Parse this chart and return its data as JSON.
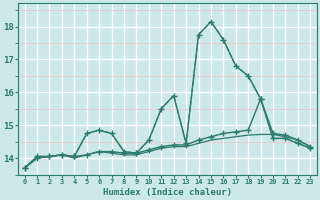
{
  "title": "",
  "xlabel": "Humidex (Indice chaleur)",
  "ylabel": "",
  "bg_color": "#cce8e8",
  "line_color": "#2d7a6e",
  "major_grid_color": "#ffffff",
  "minor_grid_color": "#e8c8c8",
  "xlim": [
    -0.5,
    23.5
  ],
  "ylim": [
    13.5,
    18.7
  ],
  "yticks": [
    14,
    15,
    16,
    17,
    18
  ],
  "xticks": [
    0,
    1,
    2,
    3,
    4,
    5,
    6,
    7,
    8,
    9,
    10,
    11,
    12,
    13,
    14,
    15,
    16,
    17,
    18,
    19,
    20,
    21,
    22,
    23
  ],
  "series": [
    {
      "x": [
        0,
        1,
        2,
        3,
        4,
        5,
        6,
        7,
        8,
        9,
        10,
        11,
        12,
        13,
        14,
        15,
        16,
        17,
        18,
        19,
        20,
        21,
        22,
        23
      ],
      "y": [
        13.7,
        14.05,
        14.05,
        14.1,
        14.05,
        14.75,
        14.85,
        14.75,
        14.2,
        14.15,
        14.55,
        15.5,
        15.9,
        14.45,
        17.75,
        18.15,
        17.6,
        16.8,
        16.5,
        15.8,
        14.6,
        14.6,
        14.45,
        14.3
      ],
      "style": "solid",
      "marker": "+",
      "markersize": 4,
      "linewidth": 1.0,
      "zorder": 3
    },
    {
      "x": [
        0,
        1,
        2,
        3,
        4,
        5,
        6,
        7,
        8,
        9,
        10,
        11,
        12,
        13,
        14,
        15,
        16,
        17,
        18,
        19,
        20,
        21,
        22,
        23
      ],
      "y": [
        13.7,
        14.05,
        14.05,
        14.1,
        14.05,
        14.75,
        14.85,
        14.75,
        14.2,
        14.15,
        14.55,
        15.5,
        15.9,
        14.45,
        17.75,
        18.15,
        17.6,
        16.8,
        16.5,
        15.8,
        14.6,
        14.6,
        14.45,
        14.3
      ],
      "style": "dashed",
      "marker": null,
      "markersize": 0,
      "linewidth": 0.9,
      "zorder": 2
    },
    {
      "x": [
        0,
        1,
        2,
        3,
        4,
        5,
        6,
        7,
        8,
        9,
        10,
        11,
        12,
        13,
        14,
        15,
        16,
        17,
        18,
        19,
        20,
        21,
        22,
        23
      ],
      "y": [
        13.7,
        14.0,
        14.05,
        14.1,
        14.05,
        14.1,
        14.2,
        14.2,
        14.15,
        14.15,
        14.25,
        14.35,
        14.4,
        14.4,
        14.55,
        14.65,
        14.75,
        14.8,
        14.85,
        15.8,
        14.75,
        14.7,
        14.55,
        14.35
      ],
      "style": "solid",
      "marker": "+",
      "markersize": 4,
      "linewidth": 1.0,
      "zorder": 3
    },
    {
      "x": [
        0,
        1,
        2,
        3,
        4,
        5,
        6,
        7,
        8,
        9,
        10,
        11,
        12,
        13,
        14,
        15,
        16,
        17,
        18,
        19,
        20,
        21,
        22,
        23
      ],
      "y": [
        13.7,
        14.0,
        14.05,
        14.1,
        14.0,
        14.1,
        14.2,
        14.15,
        14.1,
        14.1,
        14.2,
        14.3,
        14.35,
        14.35,
        14.45,
        14.55,
        14.6,
        14.65,
        14.7,
        14.72,
        14.72,
        14.65,
        14.55,
        14.35
      ],
      "style": "solid",
      "marker": null,
      "markersize": 0,
      "linewidth": 0.9,
      "zorder": 2
    }
  ]
}
